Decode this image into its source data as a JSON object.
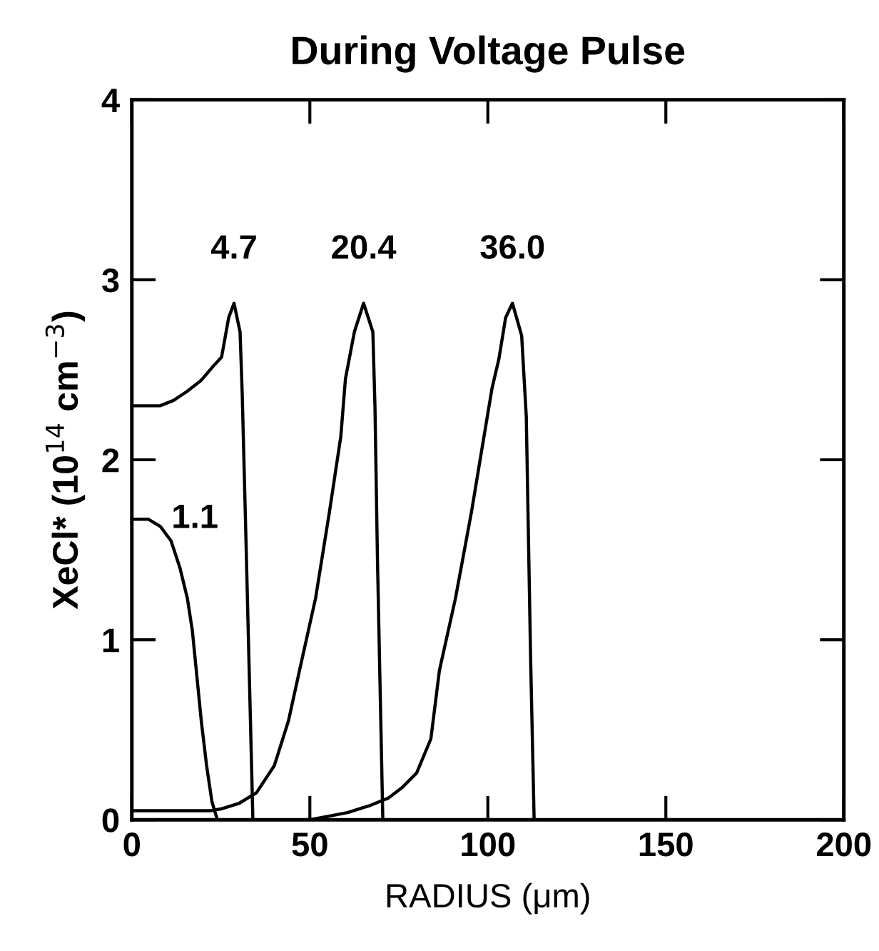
{
  "chart_data": {
    "type": "line",
    "title": "During Voltage Pulse",
    "xlabel": "RADIUS (μm)",
    "ylabel": "XeCl* (10$^{14}$ cm$^{−3}$)",
    "xlim": [
      0,
      200
    ],
    "xticks": [
      0,
      50,
      100,
      150,
      200
    ],
    "ylim": [
      0,
      4
    ],
    "yticks": [
      0,
      1,
      2,
      3,
      4
    ],
    "grid": false,
    "legend": false,
    "marker": "none",
    "line_style": "solid",
    "series": [
      {
        "name": "1.1",
        "color": "#000000",
        "x": [
          0,
          4.6,
          8,
          11,
          13.5,
          15.6,
          17,
          18.1,
          19.5,
          21,
          22.5,
          24,
          26,
          200
        ],
        "values": [
          1.67,
          1.67,
          1.63,
          1.55,
          1.4,
          1.23,
          1.05,
          0.83,
          0.55,
          0.3,
          0.1,
          0.0,
          0.0,
          0.0
        ]
      },
      {
        "name": "4.7",
        "color": "#000000",
        "x": [
          0,
          7.9,
          11.7,
          15.5,
          19.4,
          23.3,
          25.2,
          27.2,
          28.7,
          30.4,
          31,
          32,
          33,
          34,
          200
        ],
        "values": [
          2.3,
          2.3,
          2.33,
          2.38,
          2.44,
          2.53,
          2.57,
          2.79,
          2.87,
          2.71,
          2.37,
          1.6,
          0.8,
          0,
          0
        ]
      },
      {
        "name": "20.4",
        "color": "#000000",
        "x": [
          0,
          22,
          25,
          30,
          35,
          40,
          44,
          47.1,
          51.6,
          55.5,
          58.7,
          60,
          62.5,
          65.1,
          67.7,
          68.3,
          69,
          70.5,
          200
        ],
        "values": [
          0.05,
          0.05,
          0.06,
          0.09,
          0.15,
          0.3,
          0.55,
          0.83,
          1.23,
          1.71,
          2.13,
          2.45,
          2.71,
          2.87,
          2.71,
          2.29,
          1.44,
          0,
          0
        ]
      },
      {
        "name": "36.0",
        "color": "#000000",
        "x": [
          25,
          50,
          60.6,
          67,
          72,
          76,
          80,
          84,
          86.4,
          90.9,
          95.4,
          98,
          101.2,
          103.1,
          105,
          106.9,
          109.5,
          110.8,
          112,
          113,
          200
        ],
        "values": [
          0,
          0,
          0.04,
          0.08,
          0.12,
          0.18,
          0.26,
          0.45,
          0.83,
          1.23,
          1.71,
          2.02,
          2.4,
          2.56,
          2.79,
          2.87,
          2.69,
          2.24,
          0.91,
          0,
          0
        ]
      }
    ]
  }
}
